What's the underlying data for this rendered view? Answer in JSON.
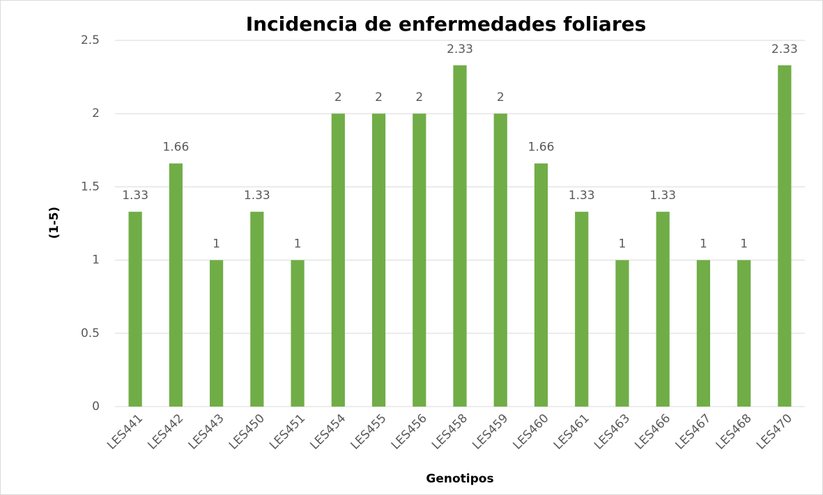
{
  "chart_data": {
    "type": "bar",
    "title": "Incidencia de enfermedades foliares",
    "x_label": "Genotipos",
    "y_label": "(1-5)",
    "categories": [
      "LES441",
      "LES442",
      "LES443",
      "LES450",
      "LES451",
      "LES454",
      "LES455",
      "LES456",
      "LES458",
      "LES459",
      "LES460",
      "LES461",
      "LES463",
      "LES466",
      "LES467",
      "LES468",
      "LES470"
    ],
    "values": [
      1.33,
      1.66,
      1,
      1.33,
      1,
      2,
      2,
      2,
      2.33,
      2,
      1.66,
      1.33,
      1,
      1.33,
      1,
      1,
      2.33
    ],
    "color": "#70ad47",
    "ylim": [
      0,
      2.5
    ],
    "yticks": [
      0,
      0.5,
      1,
      1.5,
      2,
      2.5
    ],
    "grid": true
  }
}
